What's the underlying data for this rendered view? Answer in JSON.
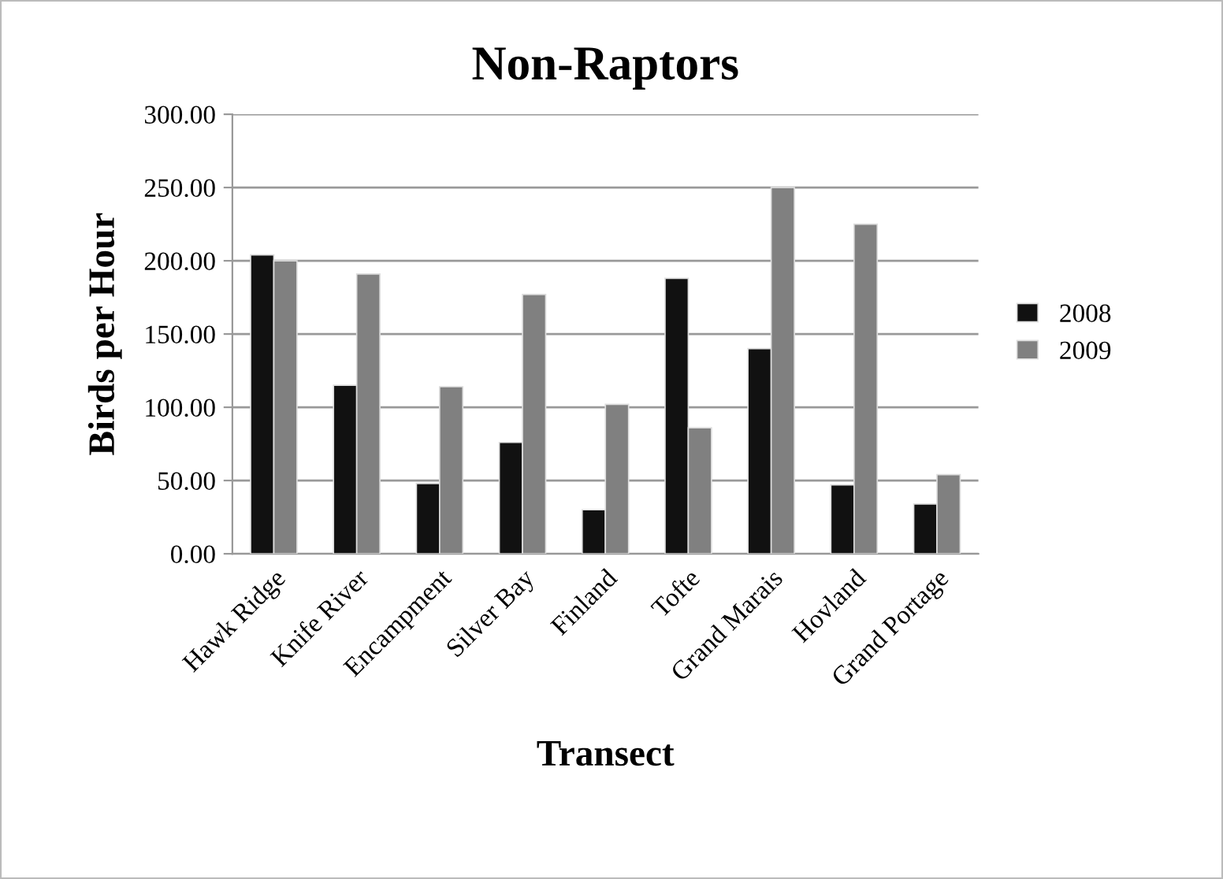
{
  "chart_data": {
    "type": "bar",
    "title": "Non-Raptors",
    "xlabel": "Transect",
    "ylabel": "Birds per Hour",
    "categories": [
      "Hawk Ridge",
      "Knife River",
      "Encampment",
      "Silver Bay",
      "Finland",
      "Tofte",
      "Grand Marais",
      "Hovland",
      "Grand Portage"
    ],
    "series": [
      {
        "name": "2008",
        "color": "#111111",
        "values": [
          204,
          115,
          48,
          76,
          30,
          188,
          140,
          47,
          34
        ]
      },
      {
        "name": "2009",
        "color": "#808080",
        "values": [
          200,
          191,
          114,
          177,
          102,
          86,
          250,
          225,
          54
        ]
      }
    ],
    "ylim": [
      0,
      300
    ],
    "yticks": [
      {
        "value": 0,
        "label": "0.00"
      },
      {
        "value": 50,
        "label": "50.00"
      },
      {
        "value": 100,
        "label": "100.00"
      },
      {
        "value": 150,
        "label": "150.00"
      },
      {
        "value": 200,
        "label": "200.00"
      },
      {
        "value": 250,
        "label": "250.00"
      },
      {
        "value": 300,
        "label": "300.00"
      }
    ],
    "grid": "y",
    "legend": "right"
  }
}
